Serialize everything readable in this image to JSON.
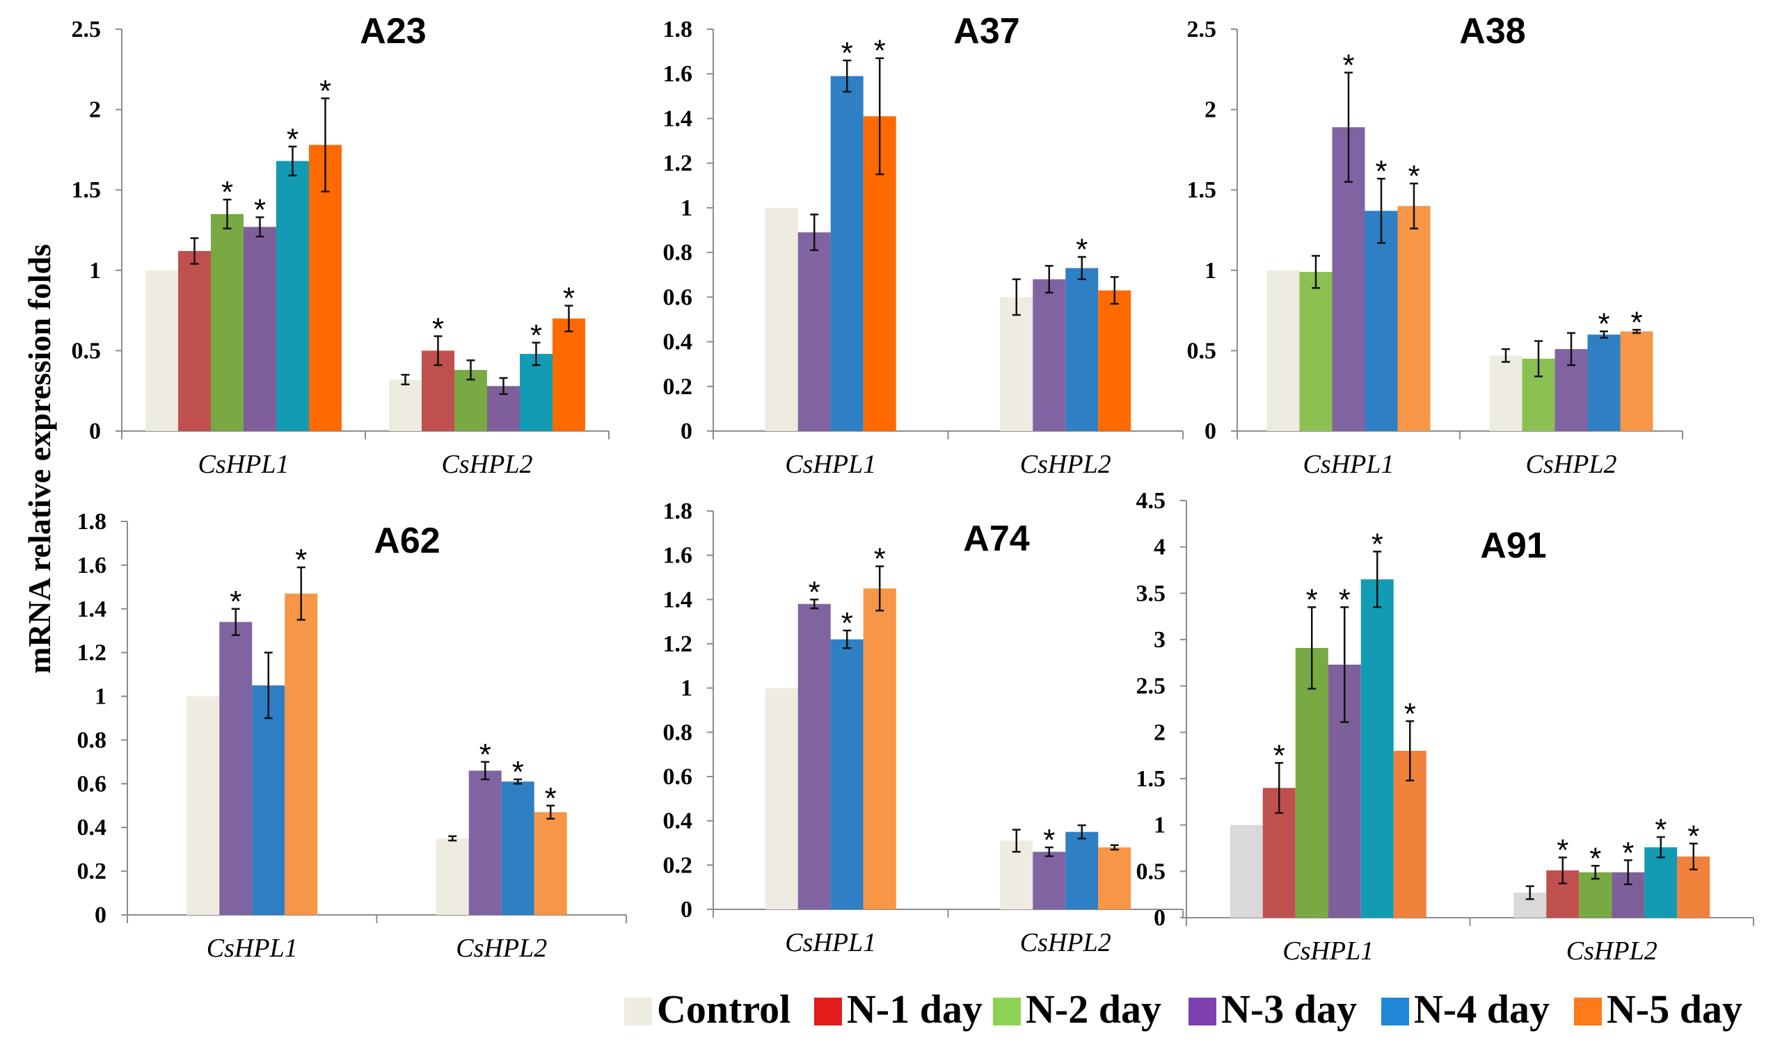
{
  "colors": {
    "Control": "#eeece1",
    "N-1 day": "#c0504d",
    "N-2 day": "#8cc152",
    "N-3 day": "#8064a2",
    "N-4 day": "#2e7fc4",
    "N-5 day": "#ff6a10"
  },
  "chart_data": {
    "type": "bar",
    "ylabel": "mRNA relative expression folds",
    "legend": {
      "placement": "bottom-right",
      "entries": [
        {
          "name": "Control",
          "color": "#eeece1"
        },
        {
          "name": "N-1 day",
          "color": "#e31b1b"
        },
        {
          "name": "N-2 day",
          "color": "#8cd253"
        },
        {
          "name": "N-3 day",
          "color": "#7e3fb0"
        },
        {
          "name": "N-4 day",
          "color": "#1e88d6"
        },
        {
          "name": "N-5 day",
          "color": "#ff7a1a"
        }
      ]
    },
    "panels": [
      {
        "title": "A23",
        "ylim": [
          0,
          2.5
        ],
        "yticks": [
          "0",
          "0.5",
          "1",
          "1.5",
          "2",
          "2.5"
        ],
        "categories": [
          "CsHPL1",
          "CsHPL2"
        ],
        "groups": [
          [
            {
              "series": "Control",
              "value": 1.0,
              "err": 0,
              "sig": false,
              "color": "#eeece1"
            },
            {
              "series": "N-1 day",
              "value": 1.12,
              "err": 0.08,
              "sig": false,
              "color": "#c0504d"
            },
            {
              "series": "N-2 day",
              "value": 1.35,
              "err": 0.09,
              "sig": true,
              "color": "#78a943"
            },
            {
              "series": "N-3 day",
              "value": 1.27,
              "err": 0.06,
              "sig": true,
              "color": "#7f5f9a"
            },
            {
              "series": "N-4 day",
              "value": 1.68,
              "err": 0.09,
              "sig": true,
              "color": "#129bb3"
            },
            {
              "series": "N-5 day",
              "value": 1.78,
              "err": 0.29,
              "sig": true,
              "color": "#ff6a00"
            }
          ],
          [
            {
              "series": "Control",
              "value": 0.32,
              "err": 0.03,
              "sig": false,
              "color": "#eeece1"
            },
            {
              "series": "N-1 day",
              "value": 0.5,
              "err": 0.09,
              "sig": true,
              "color": "#c0504d"
            },
            {
              "series": "N-2 day",
              "value": 0.38,
              "err": 0.06,
              "sig": false,
              "color": "#78a943"
            },
            {
              "series": "N-3 day",
              "value": 0.28,
              "err": 0.05,
              "sig": false,
              "color": "#7f5f9a"
            },
            {
              "series": "N-4 day",
              "value": 0.48,
              "err": 0.07,
              "sig": true,
              "color": "#129bb3"
            },
            {
              "series": "N-5 day",
              "value": 0.7,
              "err": 0.08,
              "sig": true,
              "color": "#ff6a00"
            }
          ]
        ]
      },
      {
        "title": "A37",
        "ylim": [
          0,
          1.8
        ],
        "yticks": [
          "0",
          "0.2",
          "0.4",
          "0.6",
          "0.8",
          "1",
          "1.2",
          "1.4",
          "1.6",
          "1.8"
        ],
        "categories": [
          "CsHPL1",
          "CsHPL2"
        ],
        "groups": [
          [
            {
              "series": "Control",
              "value": 1.0,
              "err": 0,
              "sig": false,
              "color": "#eeece1"
            },
            {
              "series": "N-3 day",
              "value": 0.89,
              "err": 0.08,
              "sig": false,
              "color": "#8064a2"
            },
            {
              "series": "N-4 day",
              "value": 1.59,
              "err": 0.07,
              "sig": true,
              "color": "#2e7fc4"
            },
            {
              "series": "N-5 day",
              "value": 1.41,
              "err": 0.26,
              "sig": true,
              "color": "#ff6a00"
            }
          ],
          [
            {
              "series": "Control",
              "value": 0.6,
              "err": 0.08,
              "sig": false,
              "color": "#eeece1"
            },
            {
              "series": "N-3 day",
              "value": 0.68,
              "err": 0.06,
              "sig": false,
              "color": "#8064a2"
            },
            {
              "series": "N-4 day",
              "value": 0.73,
              "err": 0.05,
              "sig": true,
              "color": "#2e7fc4"
            },
            {
              "series": "N-5 day",
              "value": 0.63,
              "err": 0.06,
              "sig": false,
              "color": "#ff6a00"
            }
          ]
        ]
      },
      {
        "title": "A38",
        "ylim": [
          0,
          2.5
        ],
        "yticks": [
          "0",
          "0.5",
          "1",
          "1.5",
          "2",
          "2.5"
        ],
        "categories": [
          "CsHPL1",
          "CsHPL2"
        ],
        "groups": [
          [
            {
              "series": "Control",
              "value": 1.0,
              "err": 0,
              "sig": false,
              "color": "#eeece1"
            },
            {
              "series": "N-2 day",
              "value": 0.99,
              "err": 0.1,
              "sig": false,
              "color": "#8cc152"
            },
            {
              "series": "N-3 day",
              "value": 1.89,
              "err": 0.34,
              "sig": true,
              "color": "#8064a2"
            },
            {
              "series": "N-4 day",
              "value": 1.37,
              "err": 0.2,
              "sig": true,
              "color": "#2e7fc4"
            },
            {
              "series": "N-5 day",
              "value": 1.4,
              "err": 0.14,
              "sig": true,
              "color": "#f79646"
            }
          ],
          [
            {
              "series": "Control",
              "value": 0.47,
              "err": 0.04,
              "sig": false,
              "color": "#eeece1"
            },
            {
              "series": "N-2 day",
              "value": 0.45,
              "err": 0.11,
              "sig": false,
              "color": "#8cc152"
            },
            {
              "series": "N-3 day",
              "value": 0.51,
              "err": 0.1,
              "sig": false,
              "color": "#8064a2"
            },
            {
              "series": "N-4 day",
              "value": 0.6,
              "err": 0.02,
              "sig": true,
              "color": "#2e7fc4"
            },
            {
              "series": "N-5 day",
              "value": 0.62,
              "err": 0.01,
              "sig": true,
              "color": "#f79646"
            }
          ]
        ]
      },
      {
        "title": "A62",
        "ylim": [
          0,
          1.8
        ],
        "yticks": [
          "0",
          "0.2",
          "0.4",
          "0.6",
          "0.8",
          "1",
          "1.2",
          "1.4",
          "1.6",
          "1.8"
        ],
        "categories": [
          "CsHPL1",
          "CsHPL2"
        ],
        "groups": [
          [
            {
              "series": "Control",
              "value": 1.0,
              "err": 0,
              "sig": false,
              "color": "#eeece1"
            },
            {
              "series": "N-3 day",
              "value": 1.34,
              "err": 0.06,
              "sig": true,
              "color": "#8064a2"
            },
            {
              "series": "N-4 day",
              "value": 1.05,
              "err": 0.15,
              "sig": false,
              "color": "#2e7fc4"
            },
            {
              "series": "N-5 day",
              "value": 1.47,
              "err": 0.12,
              "sig": true,
              "color": "#f79646"
            }
          ],
          [
            {
              "series": "Control",
              "value": 0.35,
              "err": 0.01,
              "sig": false,
              "color": "#eeece1"
            },
            {
              "series": "N-3 day",
              "value": 0.66,
              "err": 0.04,
              "sig": true,
              "color": "#8064a2"
            },
            {
              "series": "N-4 day",
              "value": 0.61,
              "err": 0.01,
              "sig": true,
              "color": "#2e7fc4"
            },
            {
              "series": "N-5 day",
              "value": 0.47,
              "err": 0.03,
              "sig": true,
              "color": "#f79646"
            }
          ]
        ]
      },
      {
        "title": "A74",
        "ylim": [
          0,
          1.8
        ],
        "yticks": [
          "0",
          "0.2",
          "0.4",
          "0.6",
          "0.8",
          "1",
          "1.2",
          "1.4",
          "1.6",
          "1.8"
        ],
        "categories": [
          "CsHPL1",
          "CsHPL2"
        ],
        "groups": [
          [
            {
              "series": "Control",
              "value": 1.0,
              "err": 0,
              "sig": false,
              "color": "#eeece1"
            },
            {
              "series": "N-3 day",
              "value": 1.38,
              "err": 0.02,
              "sig": true,
              "color": "#8064a2"
            },
            {
              "series": "N-4 day",
              "value": 1.22,
              "err": 0.04,
              "sig": true,
              "color": "#2e7fc4"
            },
            {
              "series": "N-5 day",
              "value": 1.45,
              "err": 0.1,
              "sig": true,
              "color": "#f79646"
            }
          ],
          [
            {
              "series": "Control",
              "value": 0.31,
              "err": 0.05,
              "sig": false,
              "color": "#eeece1"
            },
            {
              "series": "N-3 day",
              "value": 0.26,
              "err": 0.02,
              "sig": true,
              "color": "#8064a2"
            },
            {
              "series": "N-4 day",
              "value": 0.35,
              "err": 0.03,
              "sig": false,
              "color": "#2e7fc4"
            },
            {
              "series": "N-5 day",
              "value": 0.28,
              "err": 0.01,
              "sig": false,
              "color": "#f79646"
            }
          ]
        ]
      },
      {
        "title": "A91",
        "ylim": [
          0,
          4.5
        ],
        "yticks": [
          "0",
          "0.5",
          "1",
          "1.5",
          "2",
          "2.5",
          "3",
          "3.5",
          "4",
          "4.5"
        ],
        "categories": [
          "CsHPL1",
          "CsHPL2"
        ],
        "groups": [
          [
            {
              "series": "Control",
              "value": 1.0,
              "err": 0,
              "sig": false,
              "color": "#d9d9d9"
            },
            {
              "series": "N-1 day",
              "value": 1.4,
              "err": 0.27,
              "sig": true,
              "color": "#c0504d"
            },
            {
              "series": "N-2 day",
              "value": 2.91,
              "err": 0.44,
              "sig": true,
              "color": "#78a943"
            },
            {
              "series": "N-3 day",
              "value": 2.73,
              "err": 0.62,
              "sig": true,
              "color": "#7f5f9a"
            },
            {
              "series": "N-4 day",
              "value": 3.65,
              "err": 0.3,
              "sig": true,
              "color": "#129bb3"
            },
            {
              "series": "N-5 day",
              "value": 1.8,
              "err": 0.32,
              "sig": true,
              "color": "#f0813a"
            }
          ],
          [
            {
              "series": "Control",
              "value": 0.27,
              "err": 0.07,
              "sig": false,
              "color": "#d9d9d9"
            },
            {
              "series": "N-1 day",
              "value": 0.51,
              "err": 0.14,
              "sig": true,
              "color": "#c0504d"
            },
            {
              "series": "N-2 day",
              "value": 0.49,
              "err": 0.07,
              "sig": true,
              "color": "#78a943"
            },
            {
              "series": "N-3 day",
              "value": 0.49,
              "err": 0.13,
              "sig": true,
              "color": "#7f5f9a"
            },
            {
              "series": "N-4 day",
              "value": 0.76,
              "err": 0.11,
              "sig": true,
              "color": "#129bb3"
            },
            {
              "series": "N-5 day",
              "value": 0.66,
              "err": 0.14,
              "sig": true,
              "color": "#f0813a"
            }
          ]
        ]
      }
    ]
  }
}
